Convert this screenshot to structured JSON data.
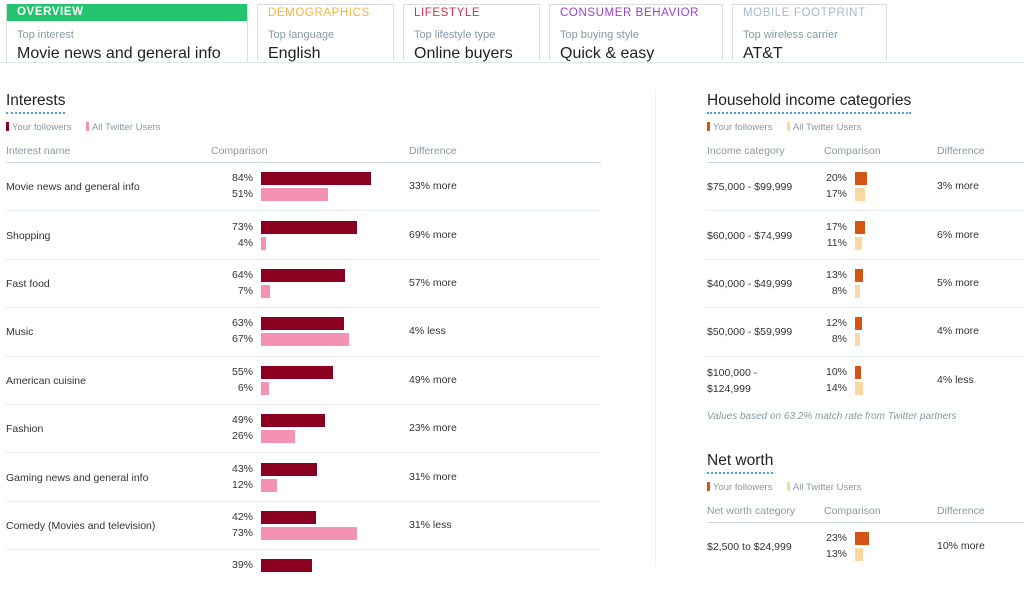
{
  "tabs": [
    {
      "title": "Overview",
      "sub": "Top interest",
      "value": "Movie news and general info",
      "color": "#ffffff"
    },
    {
      "title": "Demographics",
      "sub": "Top language",
      "value": "English",
      "color": "#f2b53d"
    },
    {
      "title": "Lifestyle",
      "sub": "Top lifestyle type",
      "value": "Online buyers",
      "color": "#d9304c"
    },
    {
      "title": "Consumer behavior",
      "sub": "Top buying style",
      "value": "Quick & easy",
      "color": "#9b3fd4"
    },
    {
      "title": "Mobile footprint",
      "sub": "Top wireless carrier",
      "value": "AT&T",
      "color": "#aab8c2"
    }
  ],
  "interests": {
    "title": "Interests",
    "legend": [
      "Your followers",
      "All Twitter Users"
    ],
    "colors": {
      "followers": "#8b0020",
      "all": "#f392b2"
    },
    "columns": [
      "Interest name",
      "Comparison",
      "Difference"
    ],
    "rows": [
      {
        "name": "Movie news and general info",
        "yours": 84,
        "all": 51,
        "yours_label": "84%",
        "all_label": "51%",
        "diff": "33% more"
      },
      {
        "name": "Shopping",
        "yours": 73,
        "all": 4,
        "yours_label": "73%",
        "all_label": "4%",
        "diff": "69% more"
      },
      {
        "name": "Fast food",
        "yours": 64,
        "all": 7,
        "yours_label": "64%",
        "all_label": "7%",
        "diff": "57% more"
      },
      {
        "name": "Music",
        "yours": 63,
        "all": 67,
        "yours_label": "63%",
        "all_label": "67%",
        "diff": "4% less"
      },
      {
        "name": "American cuisine",
        "yours": 55,
        "all": 6,
        "yours_label": "55%",
        "all_label": "6%",
        "diff": "49% more"
      },
      {
        "name": "Fashion",
        "yours": 49,
        "all": 26,
        "yours_label": "49%",
        "all_label": "26%",
        "diff": "23% more"
      },
      {
        "name": "Gaming news and general info",
        "yours": 43,
        "all": 12,
        "yours_label": "43%",
        "all_label": "12%",
        "diff": "31% more"
      },
      {
        "name": "Comedy (Movies and television)",
        "yours": 42,
        "all": 73,
        "yours_label": "42%",
        "all_label": "73%",
        "diff": "31% less"
      },
      {
        "name": "",
        "yours": 39,
        "all": 0,
        "yours_label": "39%",
        "all_label": "",
        "diff": ""
      }
    ]
  },
  "income": {
    "title": "Household income categories",
    "legend": [
      "Your followers",
      "All Twitter Users"
    ],
    "colors": {
      "followers": "#d65413",
      "all": "#fad9a0"
    },
    "columns": [
      "Income category",
      "Comparison",
      "Difference"
    ],
    "rows": [
      {
        "name": "$75,000 - $99,999",
        "yours": 20,
        "all": 17,
        "yours_label": "20%",
        "all_label": "17%",
        "diff": "3% more"
      },
      {
        "name": "$60,000 - $74,999",
        "yours": 17,
        "all": 11,
        "yours_label": "17%",
        "all_label": "11%",
        "diff": "6% more"
      },
      {
        "name": "$40,000 - $49,999",
        "yours": 13,
        "all": 8,
        "yours_label": "13%",
        "all_label": "8%",
        "diff": "5% more"
      },
      {
        "name": "$50,000 - $59,999",
        "yours": 12,
        "all": 8,
        "yours_label": "12%",
        "all_label": "8%",
        "diff": "4% more"
      },
      {
        "name": "$100,000 -\n$124,999",
        "yours": 10,
        "all": 14,
        "yours_label": "10%",
        "all_label": "14%",
        "diff": "4% less"
      }
    ],
    "note": "Values based on 63.2% match rate from Twitter partners"
  },
  "networth": {
    "title": "Net worth",
    "legend": [
      "Your followers",
      "All Twitter Users"
    ],
    "colors": {
      "followers": "#d65413",
      "all": "#fad9a0"
    },
    "columns": [
      "Net worth category",
      "Comparison",
      "Difference"
    ],
    "rows": [
      {
        "name": "$2,500 to $24,999",
        "yours": 23,
        "all": 13,
        "yours_label": "23%",
        "all_label": "13%",
        "diff": "10% more"
      }
    ]
  }
}
